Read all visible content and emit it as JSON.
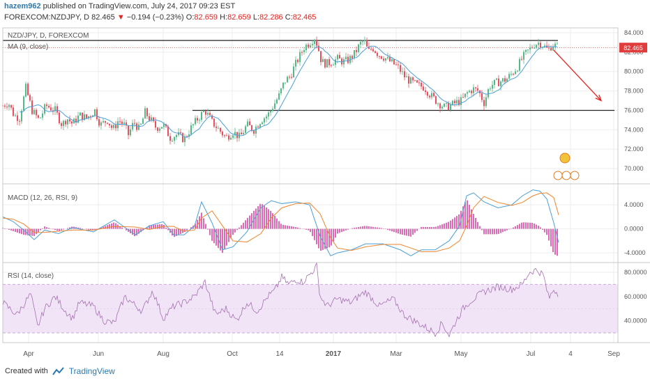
{
  "header": {
    "author": "hazem962",
    "published": "published on TradingView.com, July 24, 2017 09:23 EST",
    "symbol": "FOREXCOM:NZDJPY, D",
    "last": "82.465",
    "arrow": "▼",
    "change": "−0.194 (−0.23%)",
    "o_label": "O:",
    "o_val": "82.659",
    "h_label": "H:",
    "h_val": "82.659",
    "l_label": "L:",
    "l_val": "82.286",
    "c_label": "C:",
    "c_val": "82.465"
  },
  "labels": {
    "main_title": "NZD/JPY, D, FOREXCOM",
    "ma": "MA (9, close)",
    "macd": "MACD (12, 26, RSI, 9)",
    "rsi": "RSI (14, close)"
  },
  "footer": {
    "created": "Created with",
    "brand": "TradingView"
  },
  "colors": {
    "up": "#53b987",
    "down": "#eb4d5c",
    "ma": "#4a9fd8",
    "macd": "#4a9fd8",
    "signal": "#f0842a",
    "hist": "#d0389a",
    "rsi": "#a56fb0",
    "rsi_band": "#f0e4f6",
    "arrow": "#e3241f",
    "price_tag": "#e03c3c"
  },
  "chart_data": [
    {
      "type": "candlestick",
      "title": "NZD/JPY, D, FOREXCOM",
      "x_ticks": [
        "Apr",
        "Jun",
        "Aug",
        "Oct",
        "14",
        "2017",
        "Mar",
        "May",
        "Jul",
        "4",
        "Sep"
      ],
      "y_ticks": [
        "84.000",
        "82.000",
        "80.000",
        "78.000",
        "76.000",
        "74.000",
        "72.000",
        "70.000"
      ],
      "ylim": [
        68.5,
        84.5
      ],
      "last_price": "82.465",
      "price_path": [
        [
          0,
          76.5
        ],
        [
          8,
          76.8
        ],
        [
          16,
          75.5
        ],
        [
          24,
          75.2
        ],
        [
          33,
          78.3
        ],
        [
          42,
          76.0
        ],
        [
          52,
          75.0
        ],
        [
          62,
          76.5
        ],
        [
          75,
          76.0
        ],
        [
          85,
          74.5
        ],
        [
          92,
          75.2
        ],
        [
          100,
          74.6
        ],
        [
          110,
          75.5
        ],
        [
          120,
          75.2
        ],
        [
          132,
          76.0
        ],
        [
          140,
          74.5
        ],
        [
          150,
          75.0
        ],
        [
          158,
          74.0
        ],
        [
          166,
          75.0
        ],
        [
          174,
          74.5
        ],
        [
          180,
          73.5
        ],
        [
          188,
          74.8
        ],
        [
          196,
          74.0
        ],
        [
          204,
          75.8
        ],
        [
          212,
          75.0
        ],
        [
          220,
          74.2
        ],
        [
          230,
          74.5
        ],
        [
          240,
          73.2
        ],
        [
          250,
          73.5
        ],
        [
          260,
          73.0
        ],
        [
          270,
          74.2
        ],
        [
          280,
          75.2
        ],
        [
          290,
          76.0
        ],
        [
          300,
          74.8
        ],
        [
          310,
          74.0
        ],
        [
          320,
          73.2
        ],
        [
          330,
          73.8
        ],
        [
          340,
          73.2
        ],
        [
          350,
          74.5
        ],
        [
          360,
          74.0
        ],
        [
          370,
          75.0
        ],
        [
          380,
          75.5
        ],
        [
          388,
          76.5
        ],
        [
          396,
          77.5
        ],
        [
          404,
          79.0
        ],
        [
          412,
          79.5
        ],
        [
          418,
          80.5
        ],
        [
          425,
          81.5
        ],
        [
          432,
          82.5
        ],
        [
          440,
          83.0
        ],
        [
          447,
          83.5
        ],
        [
          452,
          82.5
        ],
        [
          457,
          81.0
        ],
        [
          464,
          80.8
        ],
        [
          472,
          81.0
        ],
        [
          480,
          81.3
        ],
        [
          488,
          81.0
        ],
        [
          496,
          81.2
        ],
        [
          504,
          81.8
        ],
        [
          512,
          82.8
        ],
        [
          518,
          83.2
        ],
        [
          524,
          82.0
        ],
        [
          530,
          82.5
        ],
        [
          538,
          81.8
        ],
        [
          546,
          81.5
        ],
        [
          556,
          81.0
        ],
        [
          566,
          80.5
        ],
        [
          576,
          79.5
        ],
        [
          584,
          79.0
        ],
        [
          594,
          78.6
        ],
        [
          604,
          78.4
        ],
        [
          614,
          77.5
        ],
        [
          624,
          76.8
        ],
        [
          634,
          76.3
        ],
        [
          642,
          76.5
        ],
        [
          650,
          76.8
        ],
        [
          658,
          77.0
        ],
        [
          666,
          77.8
        ],
        [
          674,
          78.2
        ],
        [
          682,
          78.0
        ],
        [
          690,
          76.8
        ],
        [
          698,
          78.5
        ],
        [
          706,
          78.8
        ],
        [
          714,
          79.0
        ],
        [
          722,
          79.2
        ],
        [
          730,
          79.8
        ],
        [
          738,
          80.5
        ],
        [
          746,
          81.5
        ],
        [
          754,
          82.2
        ],
        [
          762,
          82.8
        ],
        [
          770,
          83.0
        ],
        [
          776,
          82.6
        ],
        [
          782,
          82.2
        ],
        [
          788,
          82.8
        ],
        [
          796,
          82.5
        ]
      ],
      "ma_period": 9,
      "horizontal_levels": [
        83.2,
        76.0
      ],
      "projection_arrow": [
        [
          790,
          82.2
        ],
        [
          858,
          77.0
        ]
      ]
    },
    {
      "type": "line",
      "title": "MACD (12, 26, RSI, 9)",
      "y_ticks": [
        "4.0000",
        "0.0000",
        "-4.0000"
      ],
      "ylim": [
        -5.5,
        7.5
      ],
      "x_path": [
        0,
        15,
        30,
        45,
        60,
        80,
        100,
        130,
        160,
        190,
        210,
        230,
        245,
        260,
        275,
        285,
        300,
        315,
        330,
        350,
        370,
        385,
        400,
        420,
        440,
        455,
        470,
        480,
        500,
        520,
        545,
        570,
        585,
        600,
        620,
        640,
        655,
        665,
        675,
        690,
        710,
        730,
        745,
        760,
        770,
        780,
        790,
        797
      ],
      "macd_values": [
        2.0,
        1.2,
        -0.2,
        -1.8,
        -0.2,
        -0.8,
        0.2,
        -0.5,
        1.5,
        -1.0,
        0.5,
        1.2,
        -1.0,
        -1.0,
        0.5,
        4.5,
        1.0,
        -3.5,
        -3.0,
        -0.5,
        3.5,
        4.7,
        4.2,
        4.5,
        4.0,
        -1.2,
        -4.5,
        -4.0,
        -3.5,
        -2.5,
        -2.5,
        -3.5,
        -4.5,
        -3.5,
        -3.5,
        -2.0,
        0.5,
        5.5,
        6.0,
        4.5,
        3.5,
        4.0,
        5.5,
        6.5,
        6.3,
        5.0,
        1.0,
        -2.3
      ],
      "signal_values": [
        1.8,
        1.6,
        0.8,
        -0.6,
        -0.6,
        -0.4,
        -0.2,
        -0.2,
        0.4,
        0.3,
        -0.1,
        0.4,
        0.4,
        -0.4,
        -0.2,
        1.8,
        3.0,
        0.5,
        -2.0,
        -2.2,
        -0.8,
        1.8,
        3.5,
        4.2,
        4.3,
        2.5,
        -1.5,
        -3.2,
        -3.6,
        -3.0,
        -2.6,
        -2.6,
        -3.2,
        -3.8,
        -3.8,
        -3.2,
        -2.0,
        0.5,
        3.5,
        5.4,
        4.4,
        3.9,
        4.4,
        5.5,
        5.9,
        6.0,
        5.2,
        2.3
      ]
    },
    {
      "type": "line",
      "title": "RSI (14, close)",
      "y_ticks": [
        "80.0000",
        "60.0000",
        "40.0000"
      ],
      "ylim": [
        22,
        88
      ],
      "band": [
        30,
        70
      ],
      "x_path": [
        0,
        20,
        40,
        50,
        60,
        75,
        90,
        100,
        110,
        130,
        145,
        160,
        175,
        185,
        200,
        215,
        230,
        245,
        260,
        275,
        290,
        305,
        320,
        335,
        350,
        365,
        380,
        390,
        400,
        410,
        420,
        430,
        440,
        450,
        455,
        465,
        480,
        500,
        510,
        520,
        540,
        560,
        575,
        590,
        605,
        620,
        630,
        640,
        650,
        660,
        670,
        690,
        710,
        730,
        745,
        755,
        765,
        775,
        783,
        790,
        797
      ],
      "values": [
        55,
        45,
        62,
        35,
        50,
        60,
        48,
        42,
        55,
        52,
        40,
        38,
        60,
        55,
        48,
        65,
        42,
        52,
        55,
        60,
        72,
        45,
        50,
        40,
        55,
        48,
        60,
        65,
        76,
        70,
        74,
        72,
        78,
        85,
        60,
        52,
        58,
        55,
        60,
        64,
        52,
        58,
        45,
        40,
        35,
        30,
        38,
        28,
        40,
        50,
        56,
        64,
        68,
        66,
        70,
        80,
        82,
        78,
        58,
        66,
        62
      ]
    }
  ]
}
